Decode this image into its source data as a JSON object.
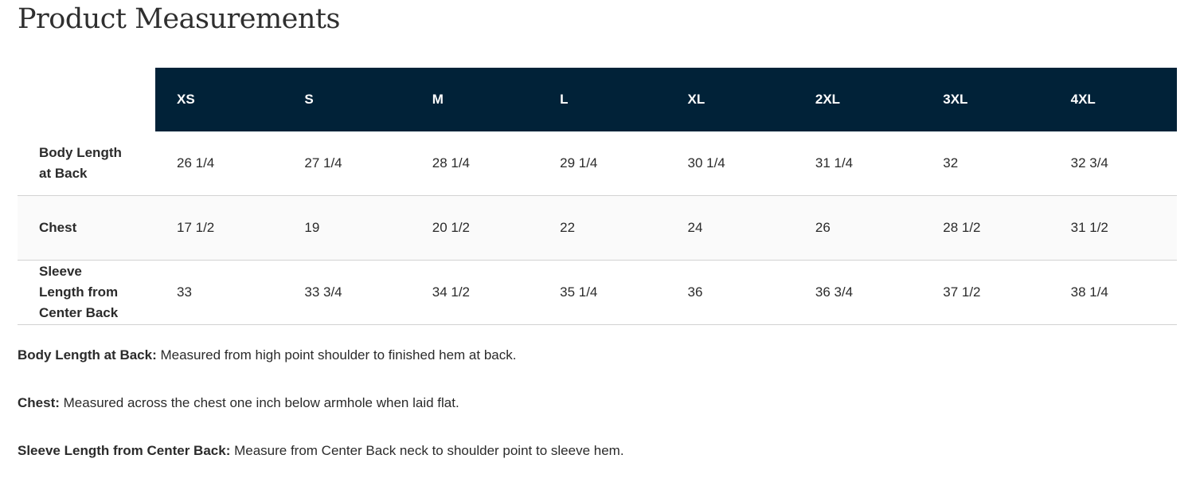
{
  "title": "Product Measurements",
  "header_color": "#012238",
  "sizes": [
    "XS",
    "S",
    "M",
    "L",
    "XL",
    "2XL",
    "3XL",
    "4XL"
  ],
  "rows": [
    {
      "label": "Body Length at Back",
      "values": [
        "26 1/4",
        "27 1/4",
        "28 1/4",
        "29 1/4",
        "30 1/4",
        "31 1/4",
        "32",
        "32 3/4"
      ]
    },
    {
      "label": "Chest",
      "values": [
        "17 1/2",
        "19",
        "20 1/2",
        "22",
        "24",
        "26",
        "28 1/2",
        "31 1/2"
      ]
    },
    {
      "label": "Sleeve Length from Center Back",
      "values": [
        "33",
        "33 3/4",
        "34 1/2",
        "35 1/4",
        "36",
        "36 3/4",
        "37 1/2",
        "38 1/4"
      ]
    }
  ],
  "notes": [
    {
      "term": "Body Length at Back:",
      "text": " Measured from high point shoulder to finished hem at back."
    },
    {
      "term": "Chest:",
      "text": " Measured across the chest one inch below armhole when laid flat."
    },
    {
      "term": "Sleeve Length from Center Back:",
      "text": " Measure from Center Back neck to shoulder point to sleeve hem."
    }
  ]
}
